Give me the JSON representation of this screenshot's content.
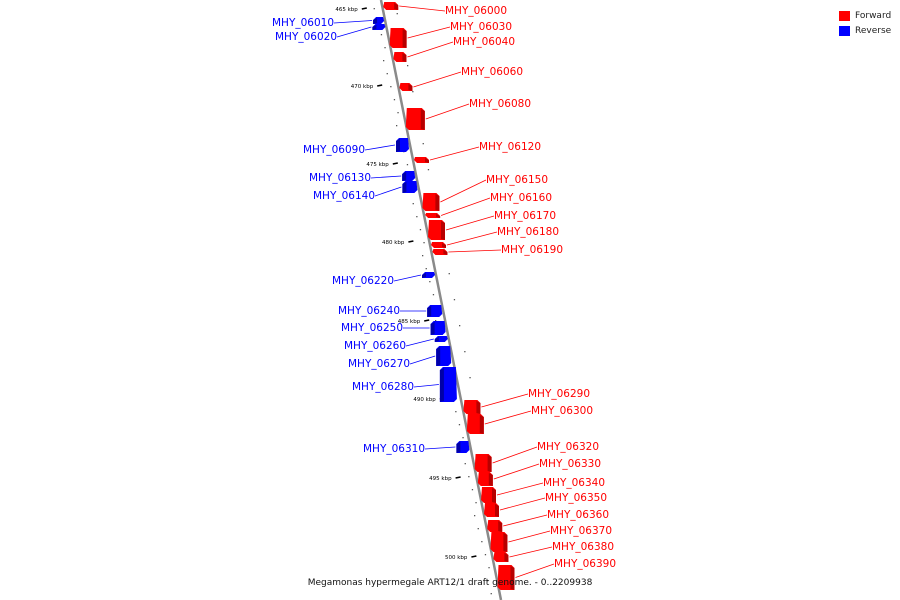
{
  "legend": {
    "forward_label": "Forward",
    "reverse_label": "Reverse",
    "forward_color": "#ff0000",
    "reverse_color": "#0000ff"
  },
  "caption": "Megamonas hypermegale ART12/1 draft genome. - 0..2209938",
  "colors": {
    "forward": "#ff0000",
    "reverse": "#0000ff",
    "axis": "#888888"
  },
  "ticks": [
    "465 kbp",
    "470 kbp",
    "475 kbp",
    "480 kbp",
    "485 kbp",
    "490 kbp",
    "495 kbp",
    "500 kbp"
  ],
  "genes": [
    {
      "label": "MHY_06000",
      "strand": "forward"
    },
    {
      "label": "MHY_06010",
      "strand": "reverse"
    },
    {
      "label": "MHY_06020",
      "strand": "reverse"
    },
    {
      "label": "MHY_06030",
      "strand": "forward"
    },
    {
      "label": "MHY_06040",
      "strand": "forward"
    },
    {
      "label": "MHY_06060",
      "strand": "forward"
    },
    {
      "label": "MHY_06080",
      "strand": "forward"
    },
    {
      "label": "MHY_06090",
      "strand": "reverse"
    },
    {
      "label": "MHY_06120",
      "strand": "forward"
    },
    {
      "label": "MHY_06130",
      "strand": "reverse"
    },
    {
      "label": "MHY_06140",
      "strand": "reverse"
    },
    {
      "label": "MHY_06150",
      "strand": "forward"
    },
    {
      "label": "MHY_06160",
      "strand": "forward"
    },
    {
      "label": "MHY_06170",
      "strand": "forward"
    },
    {
      "label": "MHY_06180",
      "strand": "forward"
    },
    {
      "label": "MHY_06190",
      "strand": "forward"
    },
    {
      "label": "MHY_06220",
      "strand": "reverse"
    },
    {
      "label": "MHY_06240",
      "strand": "reverse"
    },
    {
      "label": "MHY_06250",
      "strand": "reverse"
    },
    {
      "label": "MHY_06260",
      "strand": "reverse"
    },
    {
      "label": "MHY_06270",
      "strand": "reverse"
    },
    {
      "label": "MHY_06280",
      "strand": "reverse"
    },
    {
      "label": "MHY_06290",
      "strand": "forward"
    },
    {
      "label": "MHY_06300",
      "strand": "forward"
    },
    {
      "label": "MHY_06310",
      "strand": "reverse"
    },
    {
      "label": "MHY_06320",
      "strand": "forward"
    },
    {
      "label": "MHY_06330",
      "strand": "forward"
    },
    {
      "label": "MHY_06340",
      "strand": "forward"
    },
    {
      "label": "MHY_06350",
      "strand": "forward"
    },
    {
      "label": "MHY_06360",
      "strand": "forward"
    },
    {
      "label": "MHY_06370",
      "strand": "forward"
    },
    {
      "label": "MHY_06380",
      "strand": "forward"
    },
    {
      "label": "MHY_06390",
      "strand": "forward"
    }
  ]
}
